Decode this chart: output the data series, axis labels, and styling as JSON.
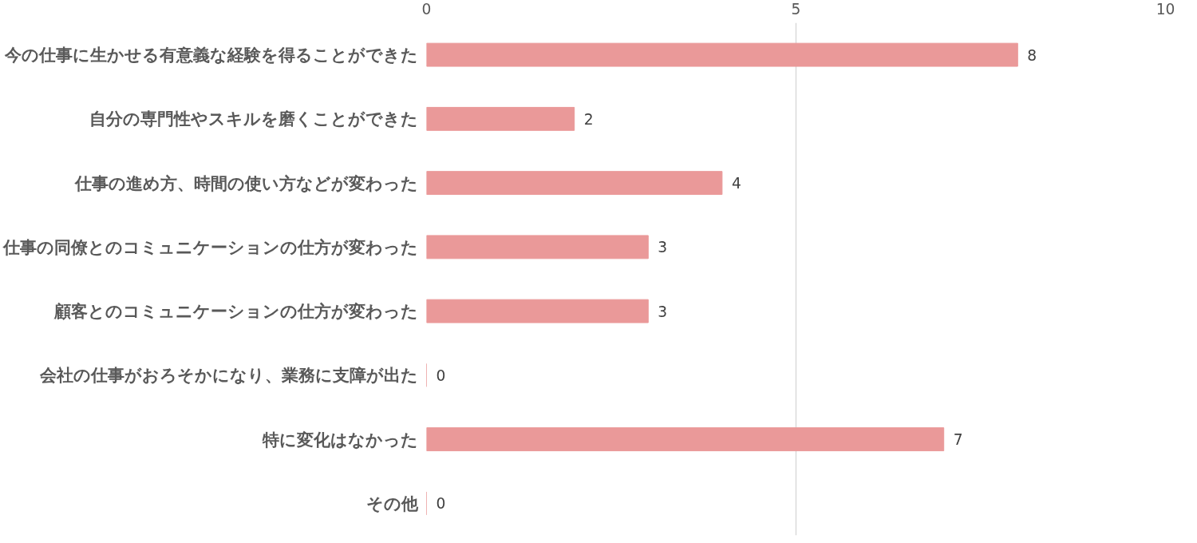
{
  "chart_data": {
    "type": "bar",
    "orientation": "horizontal",
    "categories": [
      "今の仕事に生かせる有意義な経験を得ることができた",
      "自分の専門性やスキルを磨くことができた",
      "仕事の進め方、時間の使い方などが変わった",
      "仕事の同僚とのコミュニケーションの仕方が変わった",
      "顧客とのコミュニケーションの仕方が変わった",
      "会社の仕事がおろそかになり、業務に支障が出た",
      "特に変化はなかった",
      "その他"
    ],
    "values": [
      8,
      2,
      4,
      3,
      3,
      0,
      7,
      0
    ],
    "color": "#ea9999",
    "xlim": [
      0,
      10
    ],
    "xticks": [
      0,
      5,
      10
    ],
    "grid": "x",
    "data_labels": true
  }
}
